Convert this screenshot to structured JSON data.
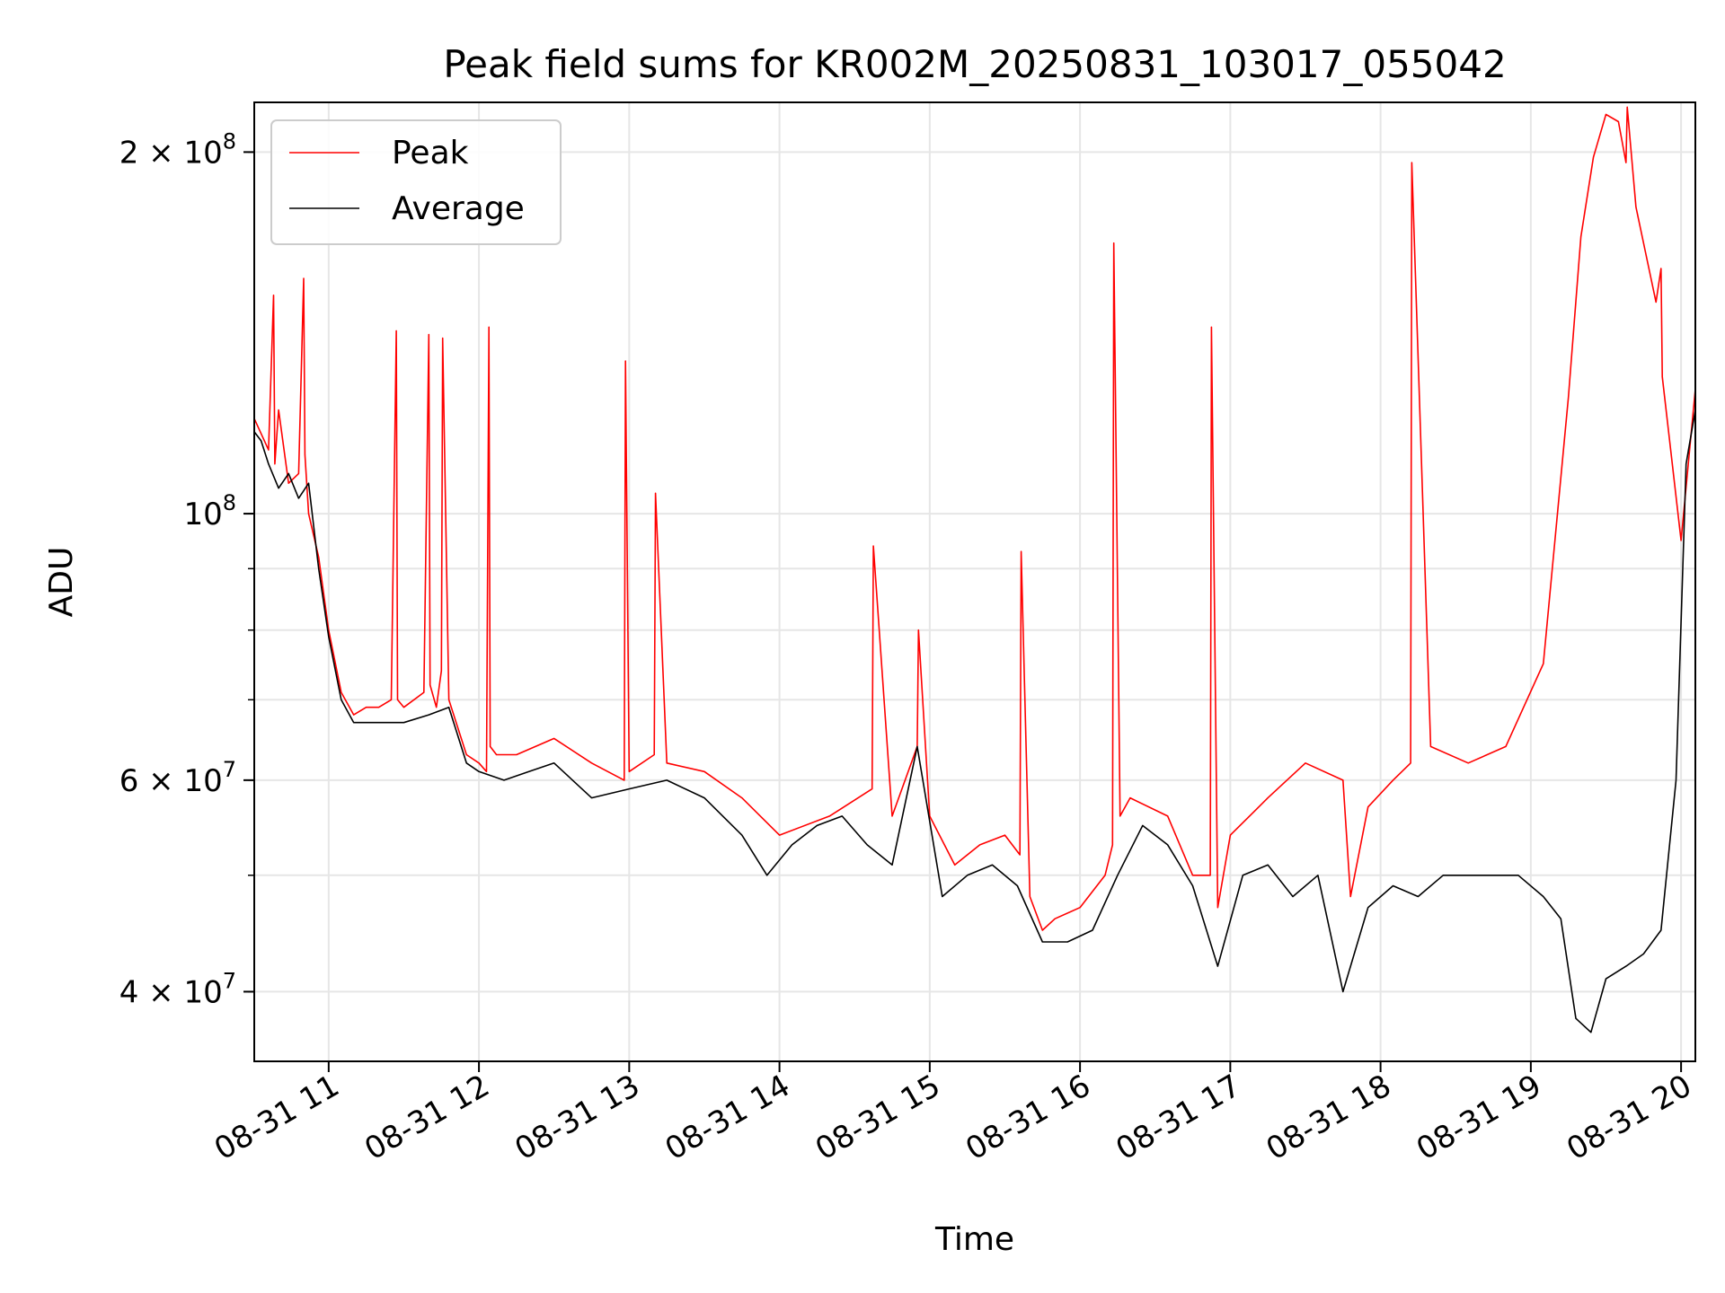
{
  "chart_data": {
    "type": "line",
    "title": "Peak field sums for KR002M_20250831_103017_055042",
    "xlabel": "Time",
    "ylabel": "ADU",
    "xscale": "time",
    "yscale": "log",
    "xlim": [
      "2025-08-31T10:30:17",
      "2025-08-31T20:05:42"
    ],
    "ylim": [
      35000000,
      220000000
    ],
    "grid": true,
    "legend": "top-left",
    "x_ticks": [
      {
        "value": "2025-08-31T11:00:00",
        "label": "08-31 11"
      },
      {
        "value": "2025-08-31T12:00:00",
        "label": "08-31 12"
      },
      {
        "value": "2025-08-31T13:00:00",
        "label": "08-31 13"
      },
      {
        "value": "2025-08-31T14:00:00",
        "label": "08-31 14"
      },
      {
        "value": "2025-08-31T15:00:00",
        "label": "08-31 15"
      },
      {
        "value": "2025-08-31T16:00:00",
        "label": "08-31 16"
      },
      {
        "value": "2025-08-31T17:00:00",
        "label": "08-31 17"
      },
      {
        "value": "2025-08-31T18:00:00",
        "label": "08-31 18"
      },
      {
        "value": "2025-08-31T19:00:00",
        "label": "08-31 19"
      },
      {
        "value": "2025-08-31T20:00:00",
        "label": "08-31 20"
      }
    ],
    "y_ticks": [
      {
        "value": 40000000,
        "base": "4",
        "exp": "7"
      },
      {
        "value": 60000000,
        "base": "6",
        "exp": "7"
      },
      {
        "value": 100000000,
        "base": "",
        "exp": "8"
      },
      {
        "value": 200000000,
        "base": "2",
        "exp": "8"
      }
    ],
    "series": [
      {
        "name": "Peak",
        "color": "#ff0000",
        "x": [
          "2025-08-31T10:30:17",
          "2025-08-31T10:36:00",
          "2025-08-31T10:38:00",
          "2025-08-31T10:38:30",
          "2025-08-31T10:40:00",
          "2025-08-31T10:44:00",
          "2025-08-31T10:48:00",
          "2025-08-31T10:50:00",
          "2025-08-31T10:50:30",
          "2025-08-31T10:52:00",
          "2025-08-31T10:56:00",
          "2025-08-31T11:00:00",
          "2025-08-31T11:05:00",
          "2025-08-31T11:10:00",
          "2025-08-31T11:15:00",
          "2025-08-31T11:20:00",
          "2025-08-31T11:25:00",
          "2025-08-31T11:27:00",
          "2025-08-31T11:27:30",
          "2025-08-31T11:30:00",
          "2025-08-31T11:38:00",
          "2025-08-31T11:40:00",
          "2025-08-31T11:40:30",
          "2025-08-31T11:43:00",
          "2025-08-31T11:45:00",
          "2025-08-31T11:45:30",
          "2025-08-31T11:48:00",
          "2025-08-31T11:55:00",
          "2025-08-31T12:00:00",
          "2025-08-31T12:03:00",
          "2025-08-31T12:04:00",
          "2025-08-31T12:04:30",
          "2025-08-31T12:07:00",
          "2025-08-31T12:15:00",
          "2025-08-31T12:30:00",
          "2025-08-31T12:45:00",
          "2025-08-31T12:58:00",
          "2025-08-31T12:58:30",
          "2025-08-31T13:00:00",
          "2025-08-31T13:10:00",
          "2025-08-31T13:10:30",
          "2025-08-31T13:15:00",
          "2025-08-31T13:30:00",
          "2025-08-31T13:45:00",
          "2025-08-31T14:00:00",
          "2025-08-31T14:20:00",
          "2025-08-31T14:37:00",
          "2025-08-31T14:37:30",
          "2025-08-31T14:45:00",
          "2025-08-31T14:55:00",
          "2025-08-31T14:55:30",
          "2025-08-31T15:00:00",
          "2025-08-31T15:10:00",
          "2025-08-31T15:20:00",
          "2025-08-31T15:30:00",
          "2025-08-31T15:36:00",
          "2025-08-31T15:36:30",
          "2025-08-31T15:40:00",
          "2025-08-31T15:45:00",
          "2025-08-31T15:50:00",
          "2025-08-31T16:00:00",
          "2025-08-31T16:10:00",
          "2025-08-31T16:13:00",
          "2025-08-31T16:13:30",
          "2025-08-31T16:16:00",
          "2025-08-31T16:20:00",
          "2025-08-31T16:35:00",
          "2025-08-31T16:45:00",
          "2025-08-31T16:52:00",
          "2025-08-31T16:52:30",
          "2025-08-31T16:55:00",
          "2025-08-31T17:00:00",
          "2025-08-31T17:15:00",
          "2025-08-31T17:30:00",
          "2025-08-31T17:45:00",
          "2025-08-31T17:48:00",
          "2025-08-31T17:55:00",
          "2025-08-31T18:05:00",
          "2025-08-31T18:12:00",
          "2025-08-31T18:12:30",
          "2025-08-31T18:20:00",
          "2025-08-31T18:35:00",
          "2025-08-31T18:50:00",
          "2025-08-31T19:05:00",
          "2025-08-31T19:15:00",
          "2025-08-31T19:20:00",
          "2025-08-31T19:25:00",
          "2025-08-31T19:30:00",
          "2025-08-31T19:35:00",
          "2025-08-31T19:38:00",
          "2025-08-31T19:38:30",
          "2025-08-31T19:42:00",
          "2025-08-31T19:50:00",
          "2025-08-31T19:52:00",
          "2025-08-31T19:52:30",
          "2025-08-31T20:00:00",
          "2025-08-31T20:05:42"
        ],
        "y": [
          120000000,
          113000000,
          152000000,
          110000000,
          122000000,
          106000000,
          108000000,
          157000000,
          112000000,
          100000000,
          92000000,
          80000000,
          71000000,
          68000000,
          69000000,
          69000000,
          70000000,
          142000000,
          70000000,
          69000000,
          71000000,
          141000000,
          72000000,
          69000000,
          74000000,
          140000000,
          70000000,
          63000000,
          62000000,
          61000000,
          143000000,
          64000000,
          63000000,
          63000000,
          65000000,
          62000000,
          60000000,
          134000000,
          61000000,
          63000000,
          104000000,
          62000000,
          61000000,
          58000000,
          54000000,
          56000000,
          59000000,
          94000000,
          56000000,
          64000000,
          80000000,
          56000000,
          51000000,
          53000000,
          54000000,
          52000000,
          93000000,
          48000000,
          45000000,
          46000000,
          47000000,
          50000000,
          53000000,
          168000000,
          56000000,
          58000000,
          56000000,
          50000000,
          50000000,
          143000000,
          47000000,
          54000000,
          58000000,
          62000000,
          60000000,
          48000000,
          57000000,
          60000000,
          62000000,
          196000000,
          64000000,
          62000000,
          64000000,
          75000000,
          125000000,
          170000000,
          198000000,
          215000000,
          212000000,
          196000000,
          218000000,
          180000000,
          150000000,
          160000000,
          130000000,
          95000000,
          127000000
        ]
      },
      {
        "name": "Average",
        "color": "#000000",
        "x": [
          "2025-08-31T10:30:17",
          "2025-08-31T10:33:00",
          "2025-08-31T10:36:00",
          "2025-08-31T10:40:00",
          "2025-08-31T10:44:00",
          "2025-08-31T10:48:00",
          "2025-08-31T10:52:00",
          "2025-08-31T10:56:00",
          "2025-08-31T11:00:00",
          "2025-08-31T11:05:00",
          "2025-08-31T11:10:00",
          "2025-08-31T11:15:00",
          "2025-08-31T11:20:00",
          "2025-08-31T11:30:00",
          "2025-08-31T11:40:00",
          "2025-08-31T11:48:00",
          "2025-08-31T11:55:00",
          "2025-08-31T12:00:00",
          "2025-08-31T12:10:00",
          "2025-08-31T12:20:00",
          "2025-08-31T12:30:00",
          "2025-08-31T12:45:00",
          "2025-08-31T13:00:00",
          "2025-08-31T13:15:00",
          "2025-08-31T13:30:00",
          "2025-08-31T13:45:00",
          "2025-08-31T13:55:00",
          "2025-08-31T14:05:00",
          "2025-08-31T14:15:00",
          "2025-08-31T14:25:00",
          "2025-08-31T14:35:00",
          "2025-08-31T14:45:00",
          "2025-08-31T14:55:00",
          "2025-08-31T15:05:00",
          "2025-08-31T15:15:00",
          "2025-08-31T15:25:00",
          "2025-08-31T15:35:00",
          "2025-08-31T15:45:00",
          "2025-08-31T15:55:00",
          "2025-08-31T16:05:00",
          "2025-08-31T16:15:00",
          "2025-08-31T16:25:00",
          "2025-08-31T16:35:00",
          "2025-08-31T16:45:00",
          "2025-08-31T16:55:00",
          "2025-08-31T17:05:00",
          "2025-08-31T17:15:00",
          "2025-08-31T17:25:00",
          "2025-08-31T17:35:00",
          "2025-08-31T17:45:00",
          "2025-08-31T17:55:00",
          "2025-08-31T18:05:00",
          "2025-08-31T18:15:00",
          "2025-08-31T18:25:00",
          "2025-08-31T18:35:00",
          "2025-08-31T18:45:00",
          "2025-08-31T18:55:00",
          "2025-08-31T19:05:00",
          "2025-08-31T19:12:00",
          "2025-08-31T19:18:00",
          "2025-08-31T19:24:00",
          "2025-08-31T19:30:00",
          "2025-08-31T19:38:00",
          "2025-08-31T19:45:00",
          "2025-08-31T19:52:00",
          "2025-08-31T19:58:00",
          "2025-08-31T20:02:00",
          "2025-08-31T20:05:42"
        ],
        "y": [
          117000000,
          115000000,
          110000000,
          105000000,
          108000000,
          103000000,
          106000000,
          90000000,
          79000000,
          70000000,
          67000000,
          67000000,
          67000000,
          67000000,
          68000000,
          69000000,
          62000000,
          61000000,
          60000000,
          61000000,
          62000000,
          58000000,
          59000000,
          60000000,
          58000000,
          54000000,
          50000000,
          53000000,
          55000000,
          56000000,
          53000000,
          51000000,
          64000000,
          48000000,
          50000000,
          51000000,
          49000000,
          44000000,
          44000000,
          45000000,
          50000000,
          55000000,
          53000000,
          49000000,
          42000000,
          50000000,
          51000000,
          48000000,
          50000000,
          40000000,
          47000000,
          49000000,
          48000000,
          50000000,
          50000000,
          50000000,
          50000000,
          48000000,
          46000000,
          38000000,
          37000000,
          41000000,
          42000000,
          43000000,
          45000000,
          60000000,
          110000000,
          122000000
        ]
      }
    ]
  }
}
